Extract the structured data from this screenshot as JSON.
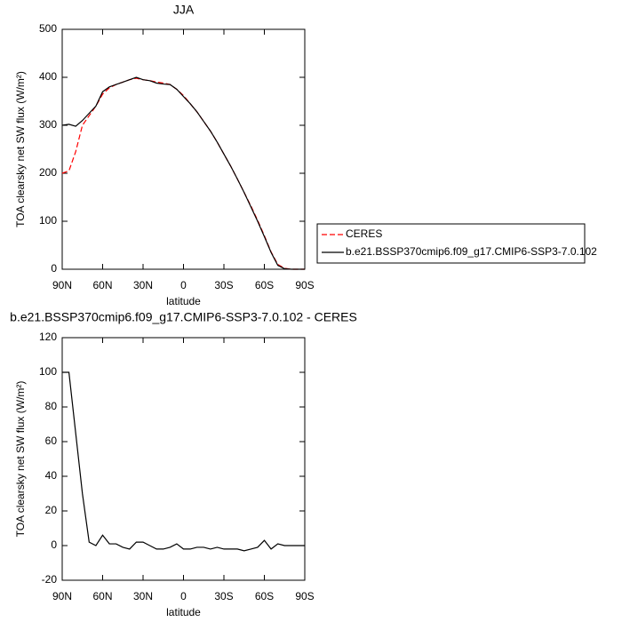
{
  "chart_data": [
    {
      "type": "line",
      "title": "JJA",
      "xlabel": "latitude",
      "ylabel": "TOA clearsky net SW flux (W/m²)",
      "x": [
        90,
        85,
        80,
        75,
        70,
        65,
        60,
        55,
        50,
        45,
        40,
        35,
        30,
        25,
        20,
        15,
        10,
        5,
        0,
        -5,
        -10,
        -15,
        -20,
        -25,
        -30,
        -35,
        -40,
        -45,
        -50,
        -55,
        -60,
        -65,
        -70,
        -75,
        -80,
        -85,
        -90
      ],
      "series": [
        {
          "name": "CERES",
          "color": "#ff0000",
          "style": "dashed",
          "values": [
            200,
            205,
            245,
            300,
            320,
            340,
            365,
            378,
            385,
            390,
            395,
            398,
            395,
            393,
            390,
            388,
            385,
            375,
            362,
            345,
            328,
            308,
            288,
            265,
            240,
            215,
            188,
            160,
            132,
            102,
            70,
            36,
            10,
            2,
            0,
            0,
            0
          ]
        },
        {
          "name": "b.e21.BSSP370cmip6.f09_g17.CMIP6-SSP3-7.0.102",
          "color": "#000000",
          "style": "solid",
          "values": [
            300,
            302,
            298,
            310,
            325,
            340,
            370,
            380,
            385,
            390,
            395,
            400,
            395,
            393,
            388,
            386,
            385,
            375,
            360,
            345,
            328,
            308,
            288,
            265,
            240,
            215,
            188,
            160,
            130,
            100,
            68,
            35,
            8,
            1,
            0,
            0,
            0
          ]
        }
      ],
      "xlim": [
        90,
        -90
      ],
      "xticks": [
        {
          "value": 90,
          "label": "90N"
        },
        {
          "value": 60,
          "label": "60N"
        },
        {
          "value": 30,
          "label": "30N"
        },
        0,
        {
          "value": -30,
          "label": "30S"
        },
        {
          "value": -60,
          "label": "60S"
        },
        {
          "value": -90,
          "label": "90S"
        }
      ],
      "ylim": [
        0,
        500
      ],
      "yticks": [
        0,
        100,
        200,
        300,
        400,
        500
      ]
    },
    {
      "type": "line",
      "title": "b.e21.BSSP370cmip6.f09_g17.CMIP6-SSP3-7.0.102 - CERES",
      "xlabel": "latitude",
      "ylabel": "TOA clearsky net SW flux (W/m²)",
      "x": [
        90,
        85,
        80,
        75,
        70,
        65,
        60,
        55,
        50,
        45,
        40,
        35,
        30,
        25,
        20,
        15,
        10,
        5,
        0,
        -5,
        -10,
        -15,
        -20,
        -25,
        -30,
        -35,
        -40,
        -45,
        -50,
        -55,
        -60,
        -65,
        -70,
        -75,
        -80,
        -85,
        -90
      ],
      "series": [
        {
          "color": "#000000",
          "style": "solid",
          "values": [
            100,
            100,
            65,
            30,
            2,
            0,
            6,
            1,
            1,
            -1,
            -2,
            2,
            2,
            0,
            -2,
            -2,
            -1,
            1,
            -2,
            -2,
            -1,
            -1,
            -2,
            -1,
            -2,
            -2,
            -2,
            -3,
            -2,
            -1,
            3,
            -2,
            1,
            0,
            0,
            0,
            0
          ]
        }
      ],
      "xlim": [
        90,
        -90
      ],
      "xticks": [
        {
          "value": 90,
          "label": "90N"
        },
        {
          "value": 60,
          "label": "60N"
        },
        {
          "value": 30,
          "label": "30N"
        },
        0,
        {
          "value": -30,
          "label": "30S"
        },
        {
          "value": -60,
          "label": "60S"
        },
        {
          "value": -90,
          "label": "90S"
        }
      ],
      "ylim": [
        -20,
        120
      ],
      "yticks": [
        -20,
        0,
        20,
        40,
        60,
        80,
        100,
        120
      ]
    }
  ]
}
